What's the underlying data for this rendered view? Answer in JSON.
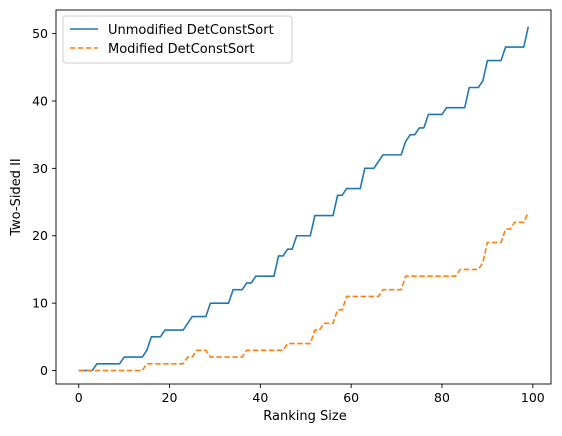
{
  "chart_data": {
    "type": "line",
    "title": "",
    "xlabel": "Ranking Size",
    "ylabel": "Two-Sided II",
    "xlim": [
      -5,
      104
    ],
    "ylim": [
      -2,
      53.5
    ],
    "xticks": [
      0,
      20,
      40,
      60,
      80,
      100
    ],
    "xtick_labels": [
      "0",
      "20",
      "40",
      "60",
      "80",
      "100"
    ],
    "yticks": [
      0,
      10,
      20,
      30,
      40,
      50
    ],
    "ytick_labels": [
      "0",
      "10",
      "20",
      "30",
      "40",
      "50"
    ],
    "grid": false,
    "legend_position": "top-left",
    "series": [
      {
        "name": "Unmodified DetConstSort",
        "color": "#1f77b4",
        "style": "solid",
        "x": [
          0,
          1,
          2,
          3,
          4,
          5,
          6,
          7,
          8,
          9,
          10,
          11,
          12,
          13,
          14,
          15,
          16,
          17,
          18,
          19,
          20,
          21,
          22,
          23,
          24,
          25,
          26,
          27,
          28,
          29,
          30,
          31,
          32,
          33,
          34,
          35,
          36,
          37,
          38,
          39,
          40,
          41,
          42,
          43,
          44,
          45,
          46,
          47,
          48,
          49,
          50,
          51,
          52,
          53,
          54,
          55,
          56,
          57,
          58,
          59,
          60,
          61,
          62,
          63,
          64,
          65,
          66,
          67,
          68,
          69,
          70,
          71,
          72,
          73,
          74,
          75,
          76,
          77,
          78,
          79,
          80,
          81,
          82,
          83,
          84,
          85,
          86,
          87,
          88,
          89,
          90,
          91,
          92,
          93,
          94,
          95,
          96,
          97,
          98,
          99
        ],
        "y": [
          0,
          0,
          0,
          0,
          1,
          1,
          1,
          1,
          1,
          1,
          2,
          2,
          2,
          2,
          2,
          3,
          5,
          5,
          5,
          6,
          6,
          6,
          6,
          6,
          7,
          8,
          8,
          8,
          8,
          10,
          10,
          10,
          10,
          10,
          12,
          12,
          12,
          13,
          13,
          14,
          14,
          14,
          14,
          14,
          17,
          17,
          18,
          18,
          20,
          20,
          20,
          20,
          23,
          23,
          23,
          23,
          23,
          26,
          26,
          27,
          27,
          27,
          27,
          30,
          30,
          30,
          31,
          32,
          32,
          32,
          32,
          32,
          34,
          35,
          35,
          36,
          36,
          38,
          38,
          38,
          38,
          39,
          39,
          39,
          39,
          39,
          42,
          42,
          42,
          43,
          46,
          46,
          46,
          46,
          48,
          48,
          48,
          48,
          48,
          51
        ]
      },
      {
        "name": "Modified DetConstSort",
        "color": "#ff7f0e",
        "style": "dashed",
        "x": [
          0,
          1,
          2,
          3,
          4,
          5,
          6,
          7,
          8,
          9,
          10,
          11,
          12,
          13,
          14,
          15,
          16,
          17,
          18,
          19,
          20,
          21,
          22,
          23,
          24,
          25,
          26,
          27,
          28,
          29,
          30,
          31,
          32,
          33,
          34,
          35,
          36,
          37,
          38,
          39,
          40,
          41,
          42,
          43,
          44,
          45,
          46,
          47,
          48,
          49,
          50,
          51,
          52,
          53,
          54,
          55,
          56,
          57,
          58,
          59,
          60,
          61,
          62,
          63,
          64,
          65,
          66,
          67,
          68,
          69,
          70,
          71,
          72,
          73,
          74,
          75,
          76,
          77,
          78,
          79,
          80,
          81,
          82,
          83,
          84,
          85,
          86,
          87,
          88,
          89,
          90,
          91,
          92,
          93,
          94,
          95,
          96,
          97,
          98,
          99
        ],
        "y": [
          0,
          0,
          0,
          0,
          0,
          0,
          0,
          0,
          0,
          0,
          0,
          0,
          0,
          0,
          0,
          1,
          1,
          1,
          1,
          1,
          1,
          1,
          1,
          1,
          2,
          2,
          3,
          3,
          3,
          2,
          2,
          2,
          2,
          2,
          2,
          2,
          2,
          3,
          3,
          3,
          3,
          3,
          3,
          3,
          3,
          3,
          4,
          4,
          4,
          4,
          4,
          4,
          6,
          6,
          7,
          7,
          7,
          9,
          9,
          11,
          11,
          11,
          11,
          11,
          11,
          11,
          11,
          12,
          12,
          12,
          12,
          12,
          14,
          14,
          14,
          14,
          14,
          14,
          14,
          14,
          14,
          14,
          14,
          14,
          15,
          15,
          15,
          15,
          15,
          16,
          19,
          19,
          19,
          19,
          21,
          21,
          22,
          22,
          22,
          23.5
        ]
      }
    ]
  }
}
